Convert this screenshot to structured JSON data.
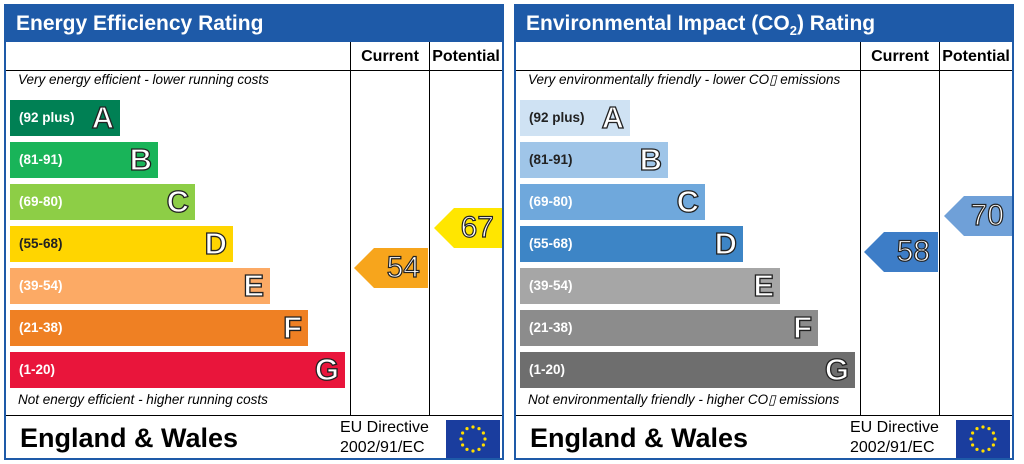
{
  "colors": {
    "frame": "#1e5aa8",
    "ee_bands": [
      "#008054",
      "#19b459",
      "#8dce46",
      "#ffd500",
      "#fcaa65",
      "#ef8023",
      "#e9153b"
    ],
    "ei_bands": [
      "#cfe2f3",
      "#9fc5e8",
      "#6fa8dc",
      "#3d85c6",
      "#a6a6a6",
      "#8c8c8c",
      "#6e6e6e"
    ],
    "ee_current_arrow": "#f7a51c",
    "ee_potential_arrow": "#ffe600",
    "ei_current_arrow": "#3d7dc7",
    "ei_potential_arrow": "#6fa0d8"
  },
  "chart_data": [
    {
      "type": "bar",
      "title": "Energy Efficiency Rating",
      "column_headers": [
        "Current",
        "Potential"
      ],
      "top_note": "Very energy efficient - lower running costs",
      "bottom_note": "Not energy efficient - higher running costs",
      "categories": [
        "(92 plus)",
        "(81-91)",
        "(69-80)",
        "(55-68)",
        "(39-54)",
        "(21-38)",
        "(1-20)"
      ],
      "band_letters": [
        "A",
        "B",
        "C",
        "D",
        "E",
        "F",
        "G"
      ],
      "current_value": "54",
      "potential_value": "67",
      "footer_region": "England & Wales",
      "footer_directive": [
        "EU Directive",
        "2002/91/EC"
      ]
    },
    {
      "type": "bar",
      "title_main": "Environmental Impact (CO",
      "title_sub": "2",
      "title_end": ") Rating",
      "column_headers": [
        "Current",
        "Potential"
      ],
      "top_note": "Very environmentally friendly - lower CO▯ emissions",
      "bottom_note": "Not environmentally friendly - higher CO▯ emissions",
      "categories": [
        "(92 plus)",
        "(81-91)",
        "(69-80)",
        "(55-68)",
        "(39-54)",
        "(21-38)",
        "(1-20)"
      ],
      "band_letters": [
        "A",
        "B",
        "C",
        "D",
        "E",
        "F",
        "G"
      ],
      "current_value": "58",
      "potential_value": "70",
      "footer_region": "England & Wales",
      "footer_directive": [
        "EU Directive",
        "2002/91/EC"
      ]
    }
  ]
}
